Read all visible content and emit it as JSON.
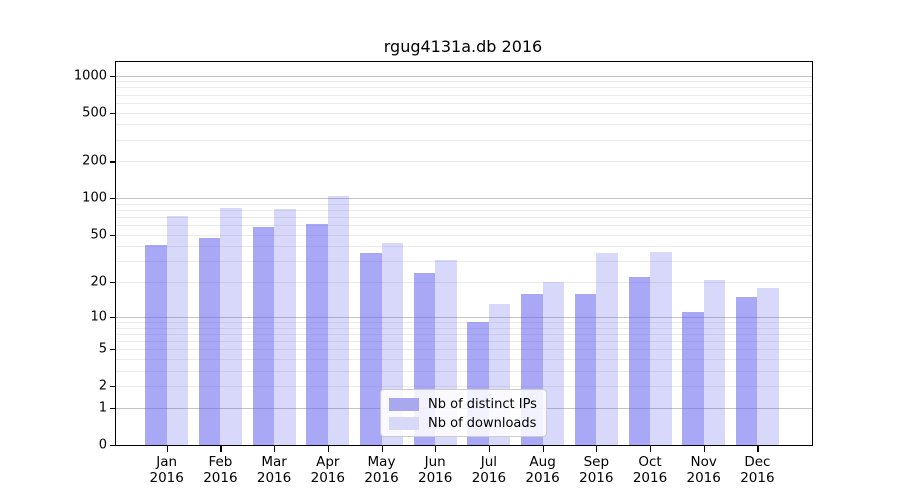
{
  "chart_data": {
    "type": "bar",
    "title": "rgug4131a.db 2016",
    "categories": [
      "Jan",
      "Feb",
      "Mar",
      "Apr",
      "May",
      "Jun",
      "Jul",
      "Aug",
      "Sep",
      "Oct",
      "Nov",
      "Dec"
    ],
    "x_year_label": "2016",
    "series": [
      {
        "name": "Nb of distinct IPs",
        "color": "rgba(96,96,238,0.55)",
        "color_flat": "#a8a8f0",
        "values": [
          41,
          47,
          58,
          61,
          35,
          24,
          9,
          16,
          16,
          22,
          11,
          15
        ]
      },
      {
        "name": "Nb of downloads",
        "color": "rgba(96,96,238,0.245)",
        "color_flat": "#d8d8f8",
        "values": [
          72,
          83,
          82,
          105,
          43,
          31,
          13,
          20,
          35,
          36,
          21,
          18
        ]
      }
    ],
    "yticks": [
      0,
      1,
      2,
      5,
      10,
      20,
      50,
      100,
      200,
      500,
      1000
    ],
    "yscale": "log1p",
    "ylim": [
      0,
      1300
    ],
    "grid": true,
    "legend_position": "lower center",
    "grid_major_color": "#c4c4c4",
    "grid_minor_color": "#ebebeb",
    "axis_color": "#000000"
  }
}
